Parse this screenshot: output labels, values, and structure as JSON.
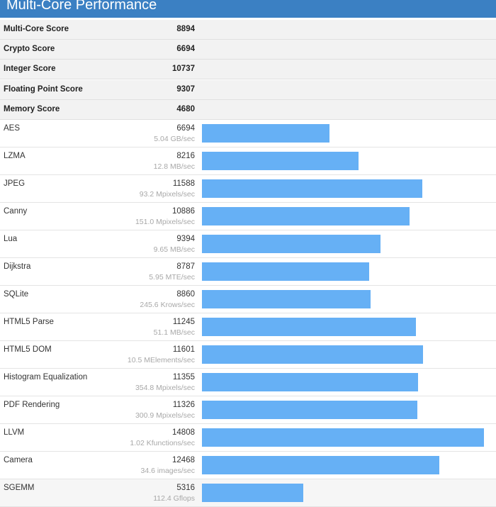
{
  "header": {
    "title": "Multi-Core Performance"
  },
  "colors": {
    "header": "#3b80c3",
    "bar": "#66b0f5"
  },
  "summary": [
    {
      "label": "Multi-Core Score",
      "value": "8894"
    },
    {
      "label": "Crypto Score",
      "value": "6694"
    },
    {
      "label": "Integer Score",
      "value": "10737"
    },
    {
      "label": "Floating Point Score",
      "value": "9307"
    },
    {
      "label": "Memory Score",
      "value": "4680"
    }
  ],
  "benchmarks": [
    {
      "label": "AES",
      "score": 6694,
      "rate": "5.04 GB/sec"
    },
    {
      "label": "LZMA",
      "score": 8216,
      "rate": "12.8 MB/sec"
    },
    {
      "label": "JPEG",
      "score": 11588,
      "rate": "93.2 Mpixels/sec"
    },
    {
      "label": "Canny",
      "score": 10886,
      "rate": "151.0 Mpixels/sec"
    },
    {
      "label": "Lua",
      "score": 9394,
      "rate": "9.65 MB/sec"
    },
    {
      "label": "Dijkstra",
      "score": 8787,
      "rate": "5.95 MTE/sec"
    },
    {
      "label": "SQLite",
      "score": 8860,
      "rate": "245.6 Krows/sec"
    },
    {
      "label": "HTML5 Parse",
      "score": 11245,
      "rate": "51.1 MB/sec"
    },
    {
      "label": "HTML5 DOM",
      "score": 11601,
      "rate": "10.5 MElements/sec"
    },
    {
      "label": "Histogram Equalization",
      "score": 11355,
      "rate": "354.8 Mpixels/sec"
    },
    {
      "label": "PDF Rendering",
      "score": 11326,
      "rate": "300.9 Mpixels/sec"
    },
    {
      "label": "LLVM",
      "score": 14808,
      "rate": "1.02 Kfunctions/sec"
    },
    {
      "label": "Camera",
      "score": 12468,
      "rate": "34.6 images/sec"
    },
    {
      "label": "SGEMM",
      "score": 5316,
      "rate": "112.4 Gflops"
    }
  ]
}
